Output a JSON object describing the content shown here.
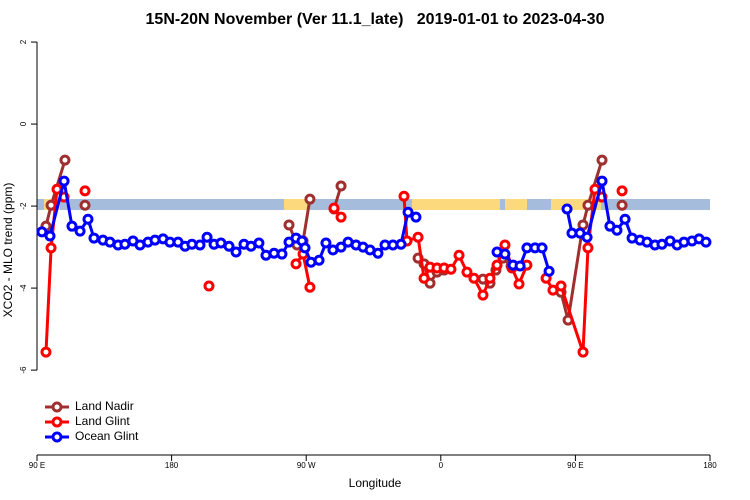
{
  "chart_data": {
    "type": "line",
    "title": "15N-20N November (Ver 11.1_late)   2019-01-01 to 2023-04-30",
    "x_label": "Longitude",
    "y_label": "XCO2 - MLO trend (ppm)",
    "xlim": [
      90,
      540
    ],
    "ylim": [
      -8.07,
      2.05
    ],
    "xticks": [
      {
        "value": 90,
        "label": "90 E"
      },
      180,
      {
        "value": 270,
        "label": "90 W"
      },
      {
        "value": 360,
        "label": "0"
      },
      {
        "value": 450,
        "label": "90 E"
      },
      {
        "value": 540,
        "label": "180"
      }
    ],
    "yticks": [
      2,
      0,
      -2,
      -4,
      -6
    ],
    "legend": "bottom-left",
    "series": [
      {
        "name": "Land Nadir",
        "color": "#a03030",
        "x": [
          96.0,
          99.4,
          108.7,
          null,
          122.1,
          null,
          258.5,
          263.9,
          267.9,
          272.5,
          null,
          288.6,
          293.3,
          null,
          344.8,
          348.8,
          352.8,
          357.5,
          362.2,
          null,
          388.2,
          392.9,
          396.9,
          401.6,
          407.0,
          null,
          440.4,
          445.1,
          455.1,
          458.4,
          467.8,
          null,
          481.2
        ],
        "values": [
          -2.49,
          -1.98,
          -0.88,
          null,
          -1.98,
          null,
          -2.46,
          -2.95,
          -2.85,
          -1.83,
          null,
          -2.07,
          -1.51,
          null,
          -3.27,
          -3.41,
          -3.88,
          -3.61,
          -3.56,
          null,
          -3.78,
          -3.88,
          -3.56,
          -3.27,
          -3.46,
          null,
          -4.1,
          -4.78,
          -2.46,
          -1.98,
          -0.88,
          null,
          -1.98
        ]
      },
      {
        "name": "Land Glint",
        "color": "#ff0000",
        "x": [
          96.0,
          99.4,
          103.4,
          108.1,
          null,
          122.1,
          null,
          205.0,
          null,
          263.2,
          267.9,
          272.5,
          null,
          288.6,
          293.3,
          null,
          335.4,
          337.4,
          344.8,
          348.8,
          352.8,
          357.5,
          362.2,
          366.8,
          372.2,
          377.5,
          382.2,
          388.2,
          392.9,
          397.6,
          402.9,
          407.6,
          412.3,
          417.6,
          null,
          430.4,
          435.0,
          440.4,
          455.1,
          458.4,
          463.1,
          467.8,
          null,
          481.2
        ],
        "values": [
          -5.56,
          -3.02,
          -1.59,
          -1.78,
          null,
          -1.63,
          null,
          -3.95,
          null,
          -3.41,
          -3.17,
          -3.98,
          null,
          -2.05,
          -2.27,
          null,
          -1.76,
          -2.85,
          -2.76,
          -3.76,
          -3.49,
          -3.51,
          -3.51,
          -3.54,
          -3.2,
          -3.61,
          -3.76,
          -4.17,
          -3.76,
          -3.44,
          -2.95,
          -3.51,
          -3.9,
          -3.44,
          null,
          -3.76,
          -4.05,
          -3.95,
          -5.56,
          -3.02,
          -1.59,
          -1.78,
          null,
          -1.63
        ]
      },
      {
        "name": "Ocean Glint",
        "color": "#0000ff",
        "x": [
          93.3,
          98.7,
          108.1,
          113.4,
          118.8,
          124.1,
          128.1,
          134.1,
          138.8,
          144.2,
          148.8,
          154.2,
          158.9,
          164.2,
          168.9,
          174.3,
          178.9,
          184.3,
          189.0,
          193.6,
          199.0,
          203.7,
          208.4,
          213.0,
          218.4,
          223.1,
          228.4,
          233.1,
          238.4,
          243.1,
          248.5,
          253.8,
          258.5,
          263.2,
          267.2,
          269.2,
          273.2,
          278.6,
          283.2,
          287.9,
          293.3,
          298.0,
          303.3,
          308.0,
          312.7,
          318.0,
          322.7,
          328.0,
          333.4,
          338.1,
          343.4,
          null,
          397.6,
          402.9,
          408.3,
          413.0,
          417.6,
          423.0,
          427.7,
          432.4,
          null,
          444.4,
          447.7,
          453.1,
          457.8,
          467.8,
          473.1,
          477.8,
          483.2,
          487.9,
          493.2,
          497.9,
          503.2,
          507.9,
          513.3,
          518.0,
          522.6,
          528.0,
          532.7,
          537.3
        ],
        "values": [
          -2.63,
          -2.73,
          -1.39,
          -2.49,
          -2.61,
          -2.32,
          -2.78,
          -2.83,
          -2.88,
          -2.95,
          -2.93,
          -2.85,
          -2.95,
          -2.88,
          -2.83,
          -2.8,
          -2.88,
          -2.88,
          -2.98,
          -2.93,
          -2.95,
          -2.76,
          -2.93,
          -2.9,
          -2.98,
          -3.12,
          -2.93,
          -2.98,
          -2.9,
          -3.2,
          -3.15,
          -3.17,
          -2.88,
          -2.78,
          -2.85,
          -3.02,
          -3.37,
          -3.32,
          -2.9,
          -3.07,
          -3.0,
          -2.88,
          -2.95,
          -3.0,
          -3.07,
          -3.15,
          -2.95,
          -2.95,
          -2.93,
          -2.15,
          -2.27,
          null,
          -3.12,
          -3.17,
          -3.44,
          -3.46,
          -3.02,
          -3.02,
          -3.02,
          -3.59,
          null,
          -2.07,
          -2.66,
          -2.66,
          -2.76,
          -1.39,
          -2.49,
          -2.59,
          -2.32,
          -2.78,
          -2.83,
          -2.88,
          -2.95,
          -2.93,
          -2.85,
          -2.95,
          -2.88,
          -2.85,
          -2.8,
          -2.88
        ]
      }
    ]
  }
}
